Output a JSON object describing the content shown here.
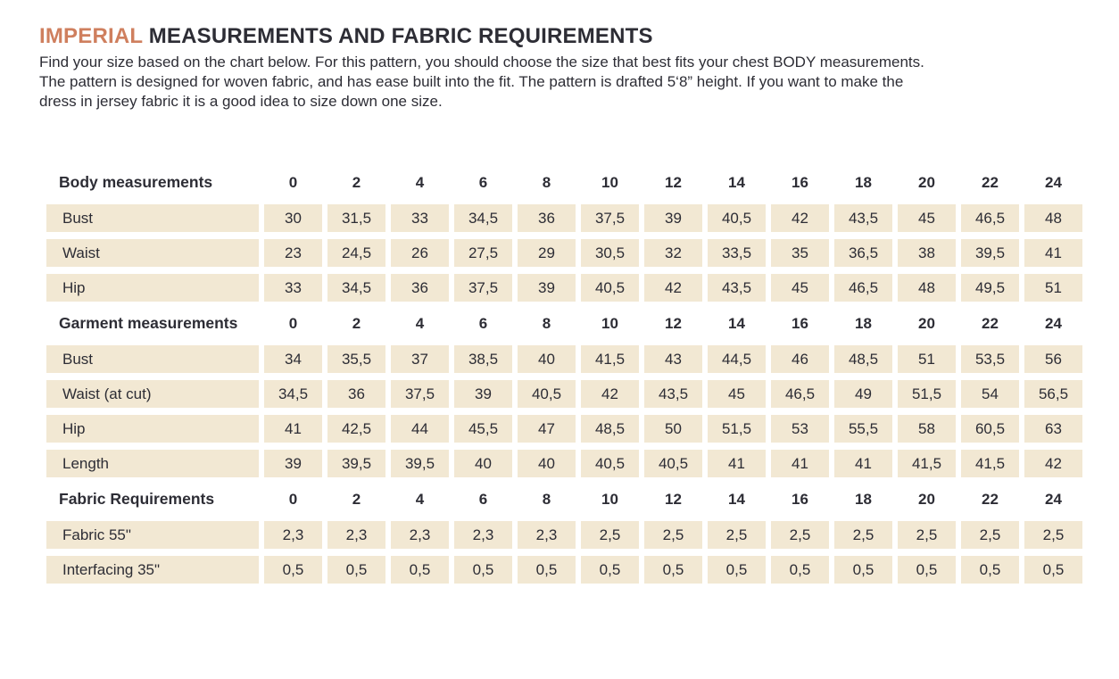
{
  "header": {
    "title_accent": "IMPERIAL",
    "title_rest": " MEASUREMENTS AND FABRIC REQUIREMENTS",
    "intro": "Find your size based on the chart below. For this pattern, you should choose the size that best fits your chest BODY measurements.\nThe pattern is designed for woven fabric, and has ease built into the fit. The pattern is drafted 5‘8” height. If you want to make the\ndress in jersey fabric it is a good idea to size down one size."
  },
  "colors": {
    "accent": "#cf7f5e",
    "cell_bg": "#f2e8d3",
    "text": "#2d2d35"
  },
  "table": {
    "sizes": [
      "0",
      "2",
      "4",
      "6",
      "8",
      "10",
      "12",
      "14",
      "16",
      "18",
      "20",
      "22",
      "24"
    ],
    "sections": [
      {
        "header": "Body measurements",
        "rows": [
          {
            "label": "Bust",
            "values": [
              "30",
              "31,5",
              "33",
              "34,5",
              "36",
              "37,5",
              "39",
              "40,5",
              "42",
              "43,5",
              "45",
              "46,5",
              "48"
            ]
          },
          {
            "label": "Waist",
            "values": [
              "23",
              "24,5",
              "26",
              "27,5",
              "29",
              "30,5",
              "32",
              "33,5",
              "35",
              "36,5",
              "38",
              "39,5",
              "41"
            ]
          },
          {
            "label": "Hip",
            "values": [
              "33",
              "34,5",
              "36",
              "37,5",
              "39",
              "40,5",
              "42",
              "43,5",
              "45",
              "46,5",
              "48",
              "49,5",
              "51"
            ]
          }
        ]
      },
      {
        "header": "Garment measurements",
        "rows": [
          {
            "label": "Bust",
            "values": [
              "34",
              "35,5",
              "37",
              "38,5",
              "40",
              "41,5",
              "43",
              "44,5",
              "46",
              "48,5",
              "51",
              "53,5",
              "56"
            ]
          },
          {
            "label": "Waist  (at cut)",
            "values": [
              "34,5",
              "36",
              "37,5",
              "39",
              "40,5",
              "42",
              "43,5",
              "45",
              "46,5",
              "49",
              "51,5",
              "54",
              "56,5"
            ]
          },
          {
            "label": "Hip",
            "values": [
              "41",
              "42,5",
              "44",
              "45,5",
              "47",
              "48,5",
              "50",
              "51,5",
              "53",
              "55,5",
              "58",
              "60,5",
              "63"
            ]
          },
          {
            "label": "Length",
            "values": [
              "39",
              "39,5",
              "39,5",
              "40",
              "40",
              "40,5",
              "40,5",
              "41",
              "41",
              "41",
              "41,5",
              "41,5",
              "42"
            ]
          }
        ]
      },
      {
        "header": "Fabric Requirements",
        "rows": [
          {
            "label": "Fabric 55\"",
            "values": [
              "2,3",
              "2,3",
              "2,3",
              "2,3",
              "2,3",
              "2,5",
              "2,5",
              "2,5",
              "2,5",
              "2,5",
              "2,5",
              "2,5",
              "2,5"
            ]
          },
          {
            "label": "Interfacing 35\"",
            "values": [
              "0,5",
              "0,5",
              "0,5",
              "0,5",
              "0,5",
              "0,5",
              "0,5",
              "0,5",
              "0,5",
              "0,5",
              "0,5",
              "0,5",
              "0,5"
            ]
          }
        ]
      }
    ]
  }
}
